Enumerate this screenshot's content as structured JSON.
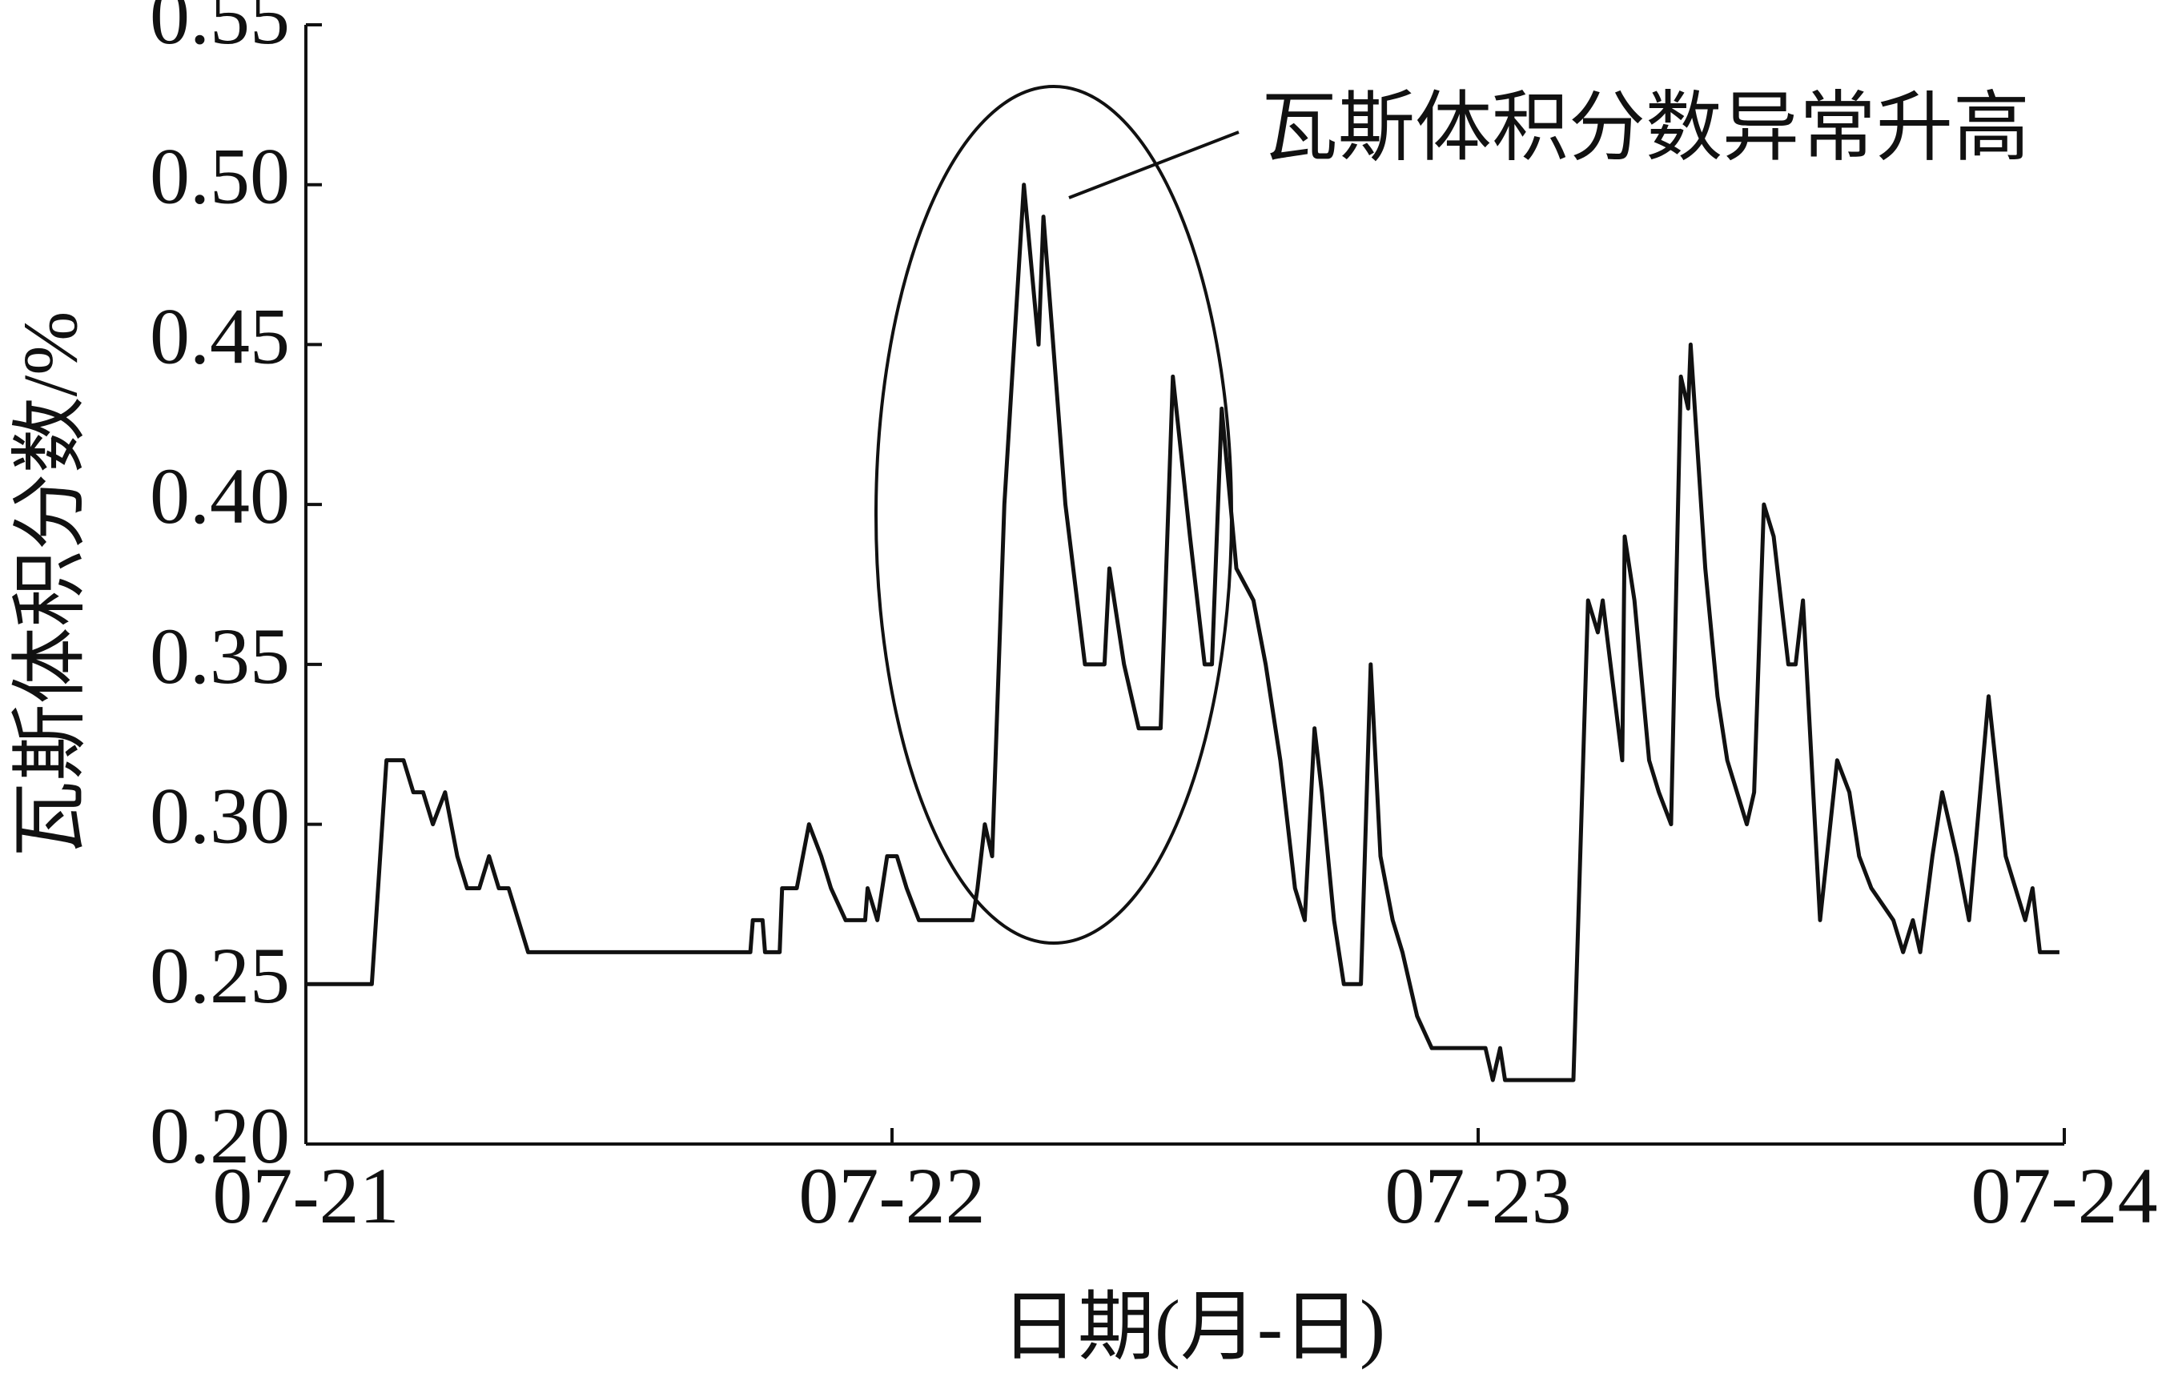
{
  "chart_data": {
    "type": "line",
    "xlabel": "日期(月-日)",
    "ylabel": "瓦斯体积分数/%",
    "annotation": "瓦斯体积分数异常升高",
    "color": "#111111",
    "x": [
      0,
      1.7,
      2.7,
      3.3,
      4.0,
      4.4,
      4.8,
      5.2,
      5.7,
      6.2,
      6.6,
      7.1,
      7.5,
      7.9,
      8.3,
      8.7,
      9.1,
      18.2,
      18.3,
      18.7,
      18.8,
      19.4,
      19.5,
      20.1,
      20.6,
      21.1,
      21.5,
      22.1,
      22.9,
      23.0,
      23.4,
      23.8,
      24.2,
      24.6,
      25.1,
      27.3,
      27.5,
      27.8,
      28.1,
      28.6,
      29.4,
      30.0,
      30.2,
      31.1,
      31.9,
      32.7,
      32.9,
      33.5,
      34.1,
      35.0,
      35.5,
      36.2,
      36.8,
      37.1,
      37.5,
      38.1,
      38.8,
      39.3,
      39.9,
      40.5,
      40.9,
      41.3,
      41.6,
      42.1,
      42.5,
      43.2,
      43.6,
      44.0,
      44.5,
      44.9,
      45.5,
      46.1,
      48.3,
      48.6,
      48.9,
      49.1,
      49.6,
      50.2,
      51.9,
      52.5,
      52.9,
      53.1,
      53.9,
      54.0,
      54.4,
      55.0,
      55.4,
      55.9,
      56.3,
      56.6,
      56.7,
      57.3,
      57.8,
      58.2,
      58.6,
      59.0,
      59.3,
      59.7,
      60.1,
      60.7,
      61.0,
      61.3,
      62.0,
      62.7,
      63.2,
      63.6,
      64.1,
      65.0,
      65.4,
      65.8,
      66.1,
      66.6,
      67.0,
      67.6,
      68.1,
      68.9,
      69.6,
      70.4,
      70.7,
      71.0,
      71.8
    ],
    "values": [
      0.25,
      0.25,
      0.25,
      0.32,
      0.32,
      0.31,
      0.31,
      0.3,
      0.31,
      0.29,
      0.28,
      0.28,
      0.29,
      0.28,
      0.28,
      0.27,
      0.26,
      0.26,
      0.27,
      0.27,
      0.26,
      0.26,
      0.28,
      0.28,
      0.3,
      0.29,
      0.28,
      0.27,
      0.27,
      0.28,
      0.27,
      0.29,
      0.29,
      0.28,
      0.27,
      0.27,
      0.28,
      0.3,
      0.29,
      0.4,
      0.5,
      0.45,
      0.49,
      0.4,
      0.35,
      0.35,
      0.38,
      0.35,
      0.33,
      0.33,
      0.44,
      0.39,
      0.35,
      0.35,
      0.43,
      0.38,
      0.37,
      0.35,
      0.32,
      0.28,
      0.27,
      0.33,
      0.31,
      0.27,
      0.25,
      0.25,
      0.35,
      0.29,
      0.27,
      0.26,
      0.24,
      0.23,
      0.23,
      0.22,
      0.23,
      0.22,
      0.22,
      0.22,
      0.22,
      0.37,
      0.36,
      0.37,
      0.32,
      0.39,
      0.37,
      0.32,
      0.31,
      0.3,
      0.44,
      0.43,
      0.45,
      0.38,
      0.34,
      0.32,
      0.31,
      0.3,
      0.31,
      0.4,
      0.39,
      0.35,
      0.35,
      0.37,
      0.27,
      0.32,
      0.31,
      0.29,
      0.28,
      0.27,
      0.26,
      0.27,
      0.26,
      0.29,
      0.31,
      0.29,
      0.27,
      0.34,
      0.29,
      0.27,
      0.28,
      0.26,
      0.26
    ],
    "xlim": [
      0,
      72
    ],
    "xticks": [
      {
        "value": 0,
        "label": "07-21"
      },
      {
        "value": 24,
        "label": "07-22"
      },
      {
        "value": 48,
        "label": "07-23"
      },
      {
        "value": 72,
        "label": "07-24"
      }
    ],
    "ylim": [
      0.2,
      0.55
    ],
    "yticks": [
      {
        "value": 0.2,
        "label": "0.20"
      },
      0.25,
      {
        "value": 0.3,
        "label": "0.30"
      },
      0.35,
      {
        "value": 0.4,
        "label": "0.40"
      },
      0.45,
      {
        "value": 0.5,
        "label": "0.50"
      },
      0.55
    ]
  }
}
